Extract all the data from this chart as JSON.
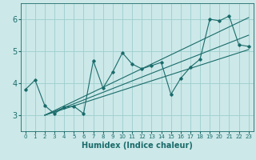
{
  "title": "",
  "xlabel": "Humidex (Indice chaleur)",
  "ylabel": "",
  "xlim": [
    -0.5,
    23.5
  ],
  "ylim": [
    2.5,
    6.5
  ],
  "yticks": [
    3,
    4,
    5,
    6
  ],
  "xticks": [
    0,
    1,
    2,
    3,
    4,
    5,
    6,
    7,
    8,
    9,
    10,
    11,
    12,
    13,
    14,
    15,
    16,
    17,
    18,
    19,
    20,
    21,
    22,
    23
  ],
  "line_color": "#1a6b6b",
  "bg_color": "#cce8e8",
  "grid_color": "#9dcece",
  "data_x": [
    0,
    1,
    2,
    3,
    4,
    5,
    6,
    7,
    8,
    9,
    10,
    11,
    12,
    13,
    14,
    15,
    16,
    17,
    18,
    19,
    20,
    21,
    22,
    23
  ],
  "data_y": [
    3.8,
    4.1,
    3.3,
    3.05,
    3.25,
    3.28,
    3.05,
    4.7,
    3.85,
    4.35,
    4.95,
    4.6,
    4.45,
    4.55,
    4.65,
    3.65,
    4.15,
    4.5,
    4.75,
    6.0,
    5.95,
    6.1,
    5.2,
    5.15
  ],
  "reg_lines": [
    {
      "x": [
        2,
        23
      ],
      "y": [
        3.0,
        5.05
      ]
    },
    {
      "x": [
        2,
        23
      ],
      "y": [
        3.0,
        5.5
      ]
    },
    {
      "x": [
        2,
        23
      ],
      "y": [
        3.0,
        6.05
      ]
    }
  ],
  "xlabel_fontsize": 7,
  "xtick_fontsize": 5,
  "ytick_fontsize": 7
}
